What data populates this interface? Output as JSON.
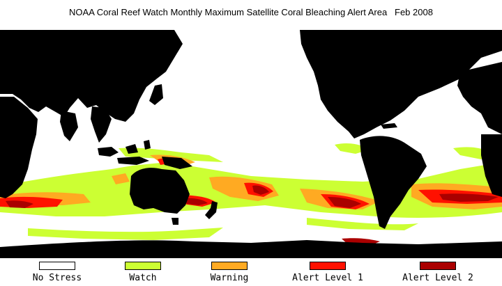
{
  "title": "NOAA Coral Reef Watch Monthly Maximum Satellite Coral Bleaching Alert Area   Feb 2008",
  "legend": [
    {
      "label": "No Stress",
      "color": "#ffffff"
    },
    {
      "label": "Watch",
      "color": "#ccff33"
    },
    {
      "label": "Warning",
      "color": "#ffaa22"
    },
    {
      "label": "Alert Level 1",
      "color": "#ff1100"
    },
    {
      "label": "Alert Level 2",
      "color": "#aa0000"
    }
  ],
  "colors": {
    "land": "#000000",
    "ocean": "#ffffff"
  }
}
